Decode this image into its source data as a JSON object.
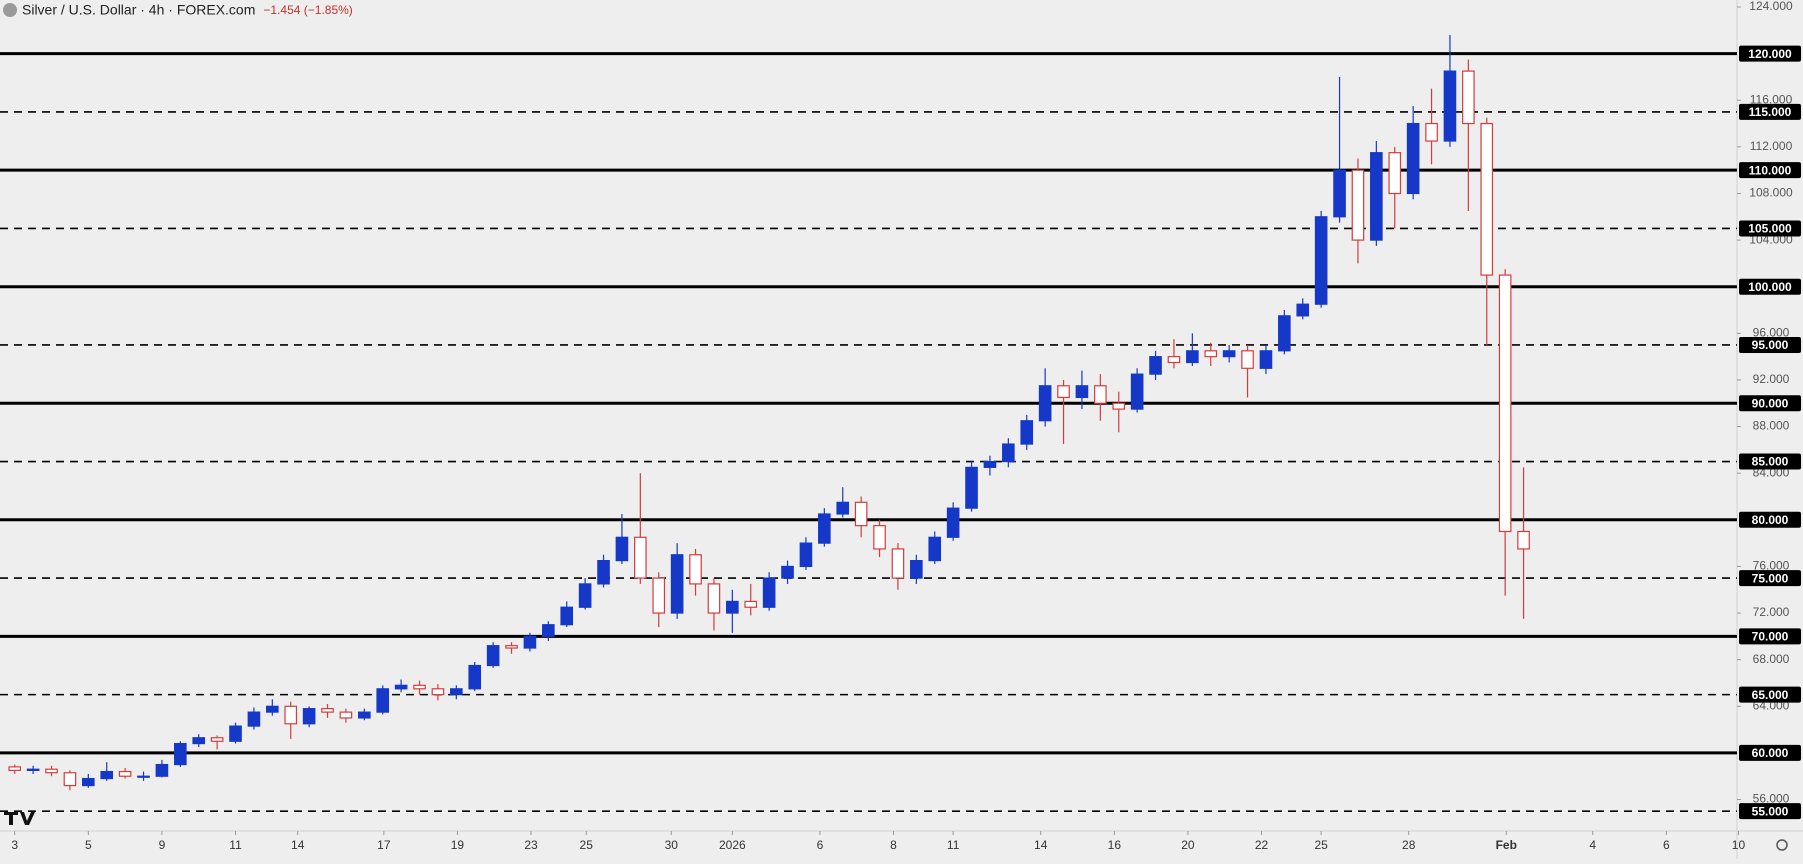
{
  "chart_data": {
    "type": "candlestick",
    "title": "Silver / U.S. Dollar · 4h · FOREX.com",
    "change_label": "−1.454 (−1.85%)",
    "up_color": "#1538c8",
    "down_color": "#d43c3c",
    "background": "#eeeeee",
    "x": [
      0,
      0.5,
      1,
      1.5,
      2,
      2.5,
      3,
      3.5,
      4,
      4.5,
      5,
      5.5,
      6,
      6.5,
      7,
      7.5,
      8,
      8.5,
      9,
      9.5,
      10,
      10.5,
      11,
      11.5,
      12,
      12.5,
      13,
      13.5,
      14,
      14.5,
      15,
      15.5,
      16,
      16.5,
      17,
      17.5,
      18,
      18.5,
      19,
      19.5,
      20,
      20.5,
      21,
      21.5,
      22,
      22.5,
      23,
      23.5,
      24,
      24.5,
      25,
      25.5,
      26,
      26.5,
      27,
      27.5,
      28,
      28.5,
      29,
      29.5,
      30,
      30.5,
      31,
      31.5,
      32,
      32.5,
      33,
      33.5,
      34,
      34.5,
      35,
      35.5,
      36,
      36.5,
      37,
      37.5,
      38,
      38.5,
      39,
      39.5,
      40,
      40.5,
      41
    ],
    "open": [
      58.8,
      58.5,
      58.6,
      58.3,
      57.2,
      57.8,
      58.4,
      58.0,
      58.0,
      59.0,
      60.8,
      61.3,
      61.0,
      62.3,
      63.5,
      64.0,
      62.5,
      63.8,
      63.5,
      63.0,
      63.5,
      65.5,
      65.8,
      65.5,
      65.0,
      65.5,
      67.5,
      69.2,
      69.0,
      70.0,
      71.0,
      72.5,
      74.5,
      76.5,
      78.5,
      75.0,
      72.0,
      77.0,
      74.5,
      72.0,
      73.0,
      72.5,
      75.0,
      76.0,
      78.0,
      80.5,
      81.5,
      79.5,
      77.5,
      75.0,
      76.5,
      78.5,
      81.0,
      84.5,
      85.0,
      86.5,
      88.5,
      91.5,
      90.5,
      91.5,
      90.0,
      89.5,
      92.5,
      94.0,
      93.5,
      94.5,
      94.0,
      94.5,
      93.0,
      94.5,
      97.5,
      98.5,
      106.0,
      110.0,
      104.0,
      111.5,
      108.0,
      114.0,
      112.5,
      118.5,
      114.0,
      101.0,
      79.0
    ],
    "high": [
      59.0,
      58.9,
      58.9,
      58.5,
      58.2,
      59.2,
      58.7,
      58.4,
      59.4,
      61.0,
      61.6,
      61.5,
      62.6,
      63.9,
      64.6,
      64.4,
      64.0,
      64.2,
      63.8,
      63.8,
      65.8,
      66.3,
      66.2,
      65.9,
      65.8,
      67.8,
      69.5,
      69.5,
      70.3,
      71.3,
      73.0,
      75.0,
      77.0,
      80.5,
      84.0,
      75.5,
      78.0,
      77.5,
      75.0,
      74.0,
      74.5,
      75.5,
      76.5,
      78.5,
      81.0,
      82.8,
      82.0,
      80.0,
      78.0,
      77.0,
      79.0,
      81.5,
      85.0,
      85.5,
      87.0,
      89.0,
      93.0,
      92.0,
      92.8,
      92.5,
      91.0,
      93.0,
      94.5,
      95.5,
      96.0,
      95.2,
      95.0,
      95.0,
      95.0,
      98.0,
      99.0,
      106.5,
      118.0,
      111.0,
      112.5,
      112.0,
      115.5,
      117.0,
      121.6,
      119.5,
      114.5,
      101.5,
      84.5
    ],
    "low": [
      58.2,
      58.2,
      58.0,
      56.8,
      57.0,
      57.6,
      57.8,
      57.6,
      57.9,
      58.8,
      60.5,
      60.3,
      60.8,
      62.0,
      63.2,
      61.2,
      62.2,
      63.0,
      62.6,
      62.8,
      63.3,
      65.2,
      65.0,
      64.5,
      64.6,
      65.3,
      67.3,
      68.5,
      68.7,
      69.6,
      70.8,
      72.3,
      74.2,
      76.2,
      74.5,
      70.8,
      71.5,
      73.5,
      70.5,
      70.3,
      71.8,
      72.2,
      74.5,
      75.7,
      77.7,
      80.2,
      78.5,
      76.8,
      74.0,
      74.5,
      76.2,
      78.2,
      80.7,
      83.8,
      84.5,
      86.0,
      88.0,
      86.5,
      89.5,
      88.5,
      87.5,
      89.2,
      92.0,
      93.0,
      93.2,
      93.2,
      93.5,
      90.5,
      92.5,
      94.2,
      97.2,
      98.2,
      105.5,
      102.0,
      103.5,
      105.0,
      107.5,
      110.5,
      112.0,
      106.5,
      95.0,
      73.5,
      71.5
    ],
    "close": [
      58.5,
      58.6,
      58.3,
      57.2,
      57.8,
      58.4,
      58.0,
      58.0,
      59.0,
      60.8,
      61.3,
      61.0,
      62.3,
      63.5,
      64.0,
      62.5,
      63.8,
      63.5,
      63.0,
      63.5,
      65.5,
      65.8,
      65.5,
      65.0,
      65.5,
      67.5,
      69.2,
      69.0,
      70.0,
      71.0,
      72.5,
      74.5,
      76.5,
      78.5,
      75.0,
      72.0,
      77.0,
      74.5,
      72.0,
      73.0,
      72.5,
      75.0,
      76.0,
      78.0,
      80.5,
      81.5,
      79.5,
      77.5,
      75.0,
      76.5,
      78.5,
      81.0,
      84.5,
      85.0,
      86.5,
      88.5,
      91.5,
      90.5,
      91.5,
      90.0,
      89.5,
      92.5,
      94.0,
      93.5,
      94.5,
      94.0,
      94.5,
      93.0,
      94.5,
      97.5,
      98.5,
      106.0,
      110.0,
      104.0,
      111.5,
      108.0,
      114.0,
      112.5,
      118.5,
      114.0,
      101.0,
      79.0,
      77.5
    ],
    "xlim": [
      -0.4,
      46.8
    ],
    "ylim": [
      53.3,
      124.6
    ],
    "xticks": [
      {
        "value": 0,
        "label": "3"
      },
      {
        "value": 2,
        "label": "5"
      },
      {
        "value": 4,
        "label": "9"
      },
      {
        "value": 6,
        "label": "11"
      },
      {
        "value": 7.69,
        "label": "14"
      },
      {
        "value": 10.03,
        "label": "17"
      },
      {
        "value": 12.03,
        "label": "19"
      },
      {
        "value": 14.03,
        "label": "23"
      },
      {
        "value": 15.53,
        "label": "25"
      },
      {
        "value": 17.84,
        "label": "30"
      },
      {
        "value": 19.5,
        "label": "2026"
      },
      {
        "value": 21.88,
        "label": "6"
      },
      {
        "value": 23.88,
        "label": "8"
      },
      {
        "value": 25.5,
        "label": "11"
      },
      {
        "value": 27.88,
        "label": "14"
      },
      {
        "value": 29.88,
        "label": "16"
      },
      {
        "value": 31.88,
        "label": "20"
      },
      {
        "value": 33.88,
        "label": "22"
      },
      {
        "value": 35.5,
        "label": "25"
      },
      {
        "value": 37.88,
        "label": "28"
      },
      {
        "value": 40.53,
        "label": "Feb"
      },
      {
        "value": 42.88,
        "label": "4"
      },
      {
        "value": 44.88,
        "label": "6"
      },
      {
        "value": 46.84,
        "label": "10"
      }
    ],
    "yticks": [
      {
        "value": 124,
        "label": "124.000"
      },
      {
        "value": 116,
        "label": "116.000"
      },
      {
        "value": 112,
        "label": "112.000"
      },
      {
        "value": 108,
        "label": "108.000"
      },
      {
        "value": 104,
        "label": "104.000"
      },
      {
        "value": 96,
        "label": "96.000"
      },
      {
        "value": 92,
        "label": "92.000"
      },
      {
        "value": 88,
        "label": "88.000"
      },
      {
        "value": 84,
        "label": "84.000"
      },
      {
        "value": 76,
        "label": "76.000"
      },
      {
        "value": 72,
        "label": "72.000"
      },
      {
        "value": 68,
        "label": "68.000"
      },
      {
        "value": 64,
        "label": "64.000"
      },
      {
        "value": 56,
        "label": "56.000"
      }
    ],
    "levels": [
      {
        "value": 120,
        "label": "120.000",
        "style": "solid"
      },
      {
        "value": 115,
        "label": "115.000",
        "style": "dashed"
      },
      {
        "value": 110,
        "label": "110.000",
        "style": "solid"
      },
      {
        "value": 105,
        "label": "105.000",
        "style": "dashed"
      },
      {
        "value": 100,
        "label": "100.000",
        "style": "solid"
      },
      {
        "value": 95,
        "label": "95.000",
        "style": "dashed"
      },
      {
        "value": 90,
        "label": "90.000",
        "style": "solid"
      },
      {
        "value": 85,
        "label": "85.000",
        "style": "dashed"
      },
      {
        "value": 80,
        "label": "80.000",
        "style": "solid"
      },
      {
        "value": 75,
        "label": "75.000",
        "style": "dashed"
      },
      {
        "value": 70,
        "label": "70.000",
        "style": "solid"
      },
      {
        "value": 65,
        "label": "65.000",
        "style": "dashed"
      },
      {
        "value": 60,
        "label": "60.000",
        "style": "solid"
      },
      {
        "value": 55,
        "label": "55.000",
        "style": "dashed"
      }
    ]
  }
}
